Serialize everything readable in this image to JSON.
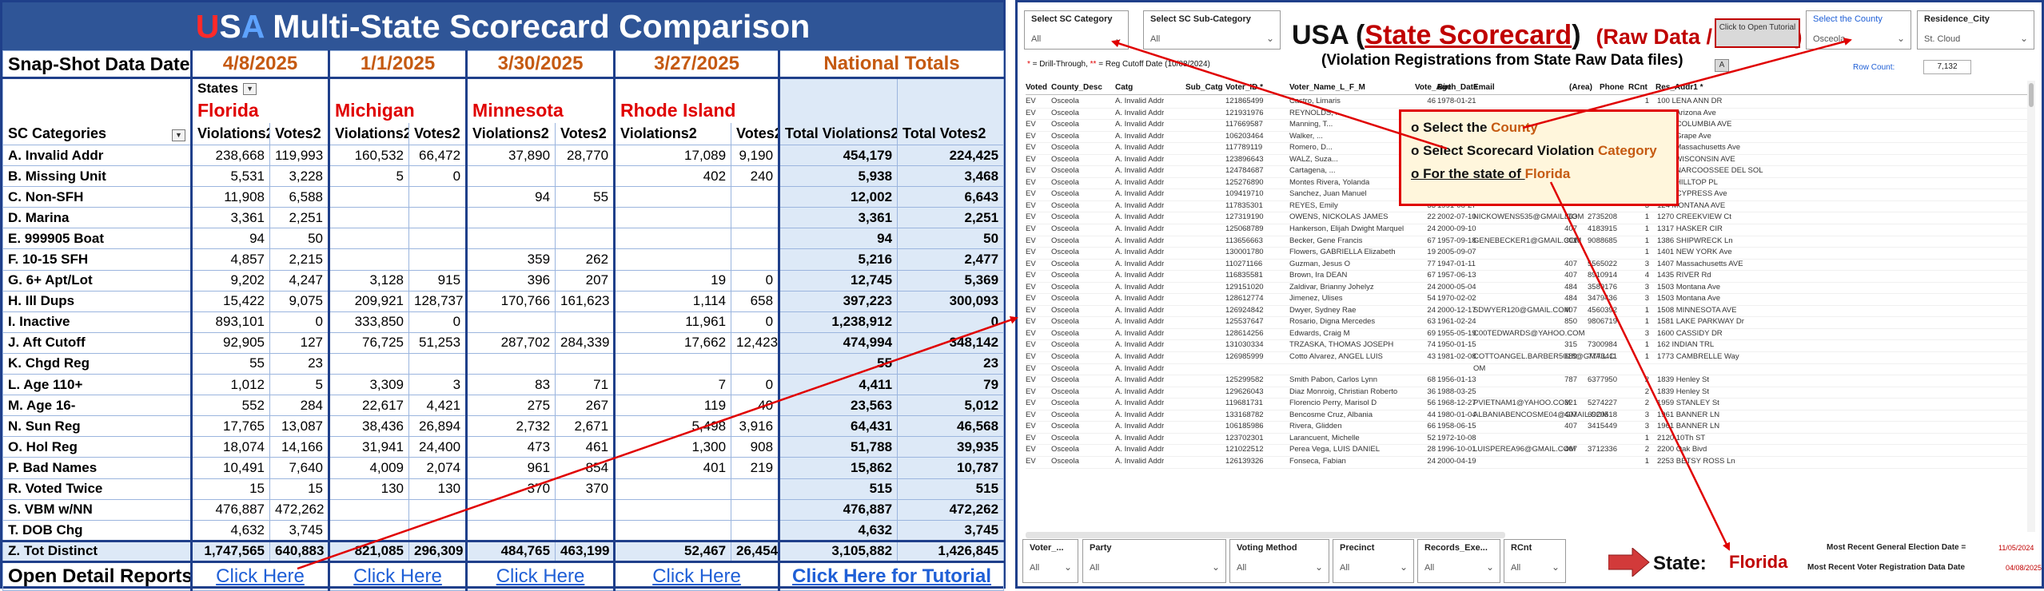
{
  "left": {
    "title_u": "U",
    "title_s": "S",
    "title_a": "A",
    "title_rest": " Multi-State Scorecard Comparison",
    "snapshot_label": "Snap-Shot Data Date:",
    "snapshot_dates": [
      "4/8/2025",
      "1/1/2025",
      "3/30/2025",
      "3/27/2025"
    ],
    "national_totals_label": "National Totals",
    "states_label": "States",
    "states": [
      "Florida",
      "Michigan",
      "Minnesota",
      "Rhode Island"
    ],
    "categories_label": "SC Categories",
    "violations_label": "Violations2",
    "votes_label": "Votes2",
    "total_violations_label": "Total Violations2",
    "total_votes_label": "Total Votes2",
    "rows": [
      {
        "cat": "A. Invalid Addr",
        "v": [
          "238,668",
          "119,993",
          "160,532",
          "66,472",
          "37,890",
          "28,770",
          "17,089",
          "9,190"
        ],
        "tv": "454,179",
        "tvo": "224,425"
      },
      {
        "cat": "B. Missing Unit",
        "v": [
          "5,531",
          "3,228",
          "5",
          "0",
          "",
          "",
          "402",
          "240"
        ],
        "tv": "5,938",
        "tvo": "3,468"
      },
      {
        "cat": "C. Non-SFH",
        "v": [
          "11,908",
          "6,588",
          "",
          "",
          "94",
          "55",
          "",
          ""
        ],
        "tv": "12,002",
        "tvo": "6,643"
      },
      {
        "cat": "D. Marina",
        "v": [
          "3,361",
          "2,251",
          "",
          "",
          "",
          "",
          "",
          ""
        ],
        "tv": "3,361",
        "tvo": "2,251"
      },
      {
        "cat": "E. 999905 Boat",
        "v": [
          "94",
          "50",
          "",
          "",
          "",
          "",
          "",
          ""
        ],
        "tv": "94",
        "tvo": "50"
      },
      {
        "cat": "F. 10-15 SFH",
        "v": [
          "4,857",
          "2,215",
          "",
          "",
          "359",
          "262",
          "",
          ""
        ],
        "tv": "5,216",
        "tvo": "2,477"
      },
      {
        "cat": "G. 6+ Apt/Lot",
        "v": [
          "9,202",
          "4,247",
          "3,128",
          "915",
          "396",
          "207",
          "19",
          "0"
        ],
        "tv": "12,745",
        "tvo": "5,369"
      },
      {
        "cat": "H. Ill Dups",
        "v": [
          "15,422",
          "9,075",
          "209,921",
          "128,737",
          "170,766",
          "161,623",
          "1,114",
          "658"
        ],
        "tv": "397,223",
        "tvo": "300,093"
      },
      {
        "cat": "I. Inactive",
        "v": [
          "893,101",
          "0",
          "333,850",
          "0",
          "",
          "",
          "11,961",
          "0"
        ],
        "tv": "1,238,912",
        "tvo": "0"
      },
      {
        "cat": "J. Aft Cutoff",
        "v": [
          "92,905",
          "127",
          "76,725",
          "51,253",
          "287,702",
          "284,339",
          "17,662",
          "12,423"
        ],
        "tv": "474,994",
        "tvo": "348,142"
      },
      {
        "cat": "K. Chgd Reg",
        "v": [
          "55",
          "23",
          "",
          "",
          "",
          "",
          "",
          ""
        ],
        "tv": "55",
        "tvo": "23"
      },
      {
        "cat": "L. Age 110+",
        "v": [
          "1,012",
          "5",
          "3,309",
          "3",
          "83",
          "71",
          "7",
          "0"
        ],
        "tv": "4,411",
        "tvo": "79"
      },
      {
        "cat": "M. Age 16-",
        "v": [
          "552",
          "284",
          "22,617",
          "4,421",
          "275",
          "267",
          "119",
          "40"
        ],
        "tv": "23,563",
        "tvo": "5,012"
      },
      {
        "cat": "N. Sun Reg",
        "v": [
          "17,765",
          "13,087",
          "38,436",
          "26,894",
          "2,732",
          "2,671",
          "5,498",
          "3,916"
        ],
        "tv": "64,431",
        "tvo": "46,568"
      },
      {
        "cat": "O. Hol Reg",
        "v": [
          "18,074",
          "14,166",
          "31,941",
          "24,400",
          "473",
          "461",
          "1,300",
          "908"
        ],
        "tv": "51,788",
        "tvo": "39,935"
      },
      {
        "cat": "P. Bad Names",
        "v": [
          "10,491",
          "7,640",
          "4,009",
          "2,074",
          "961",
          "854",
          "401",
          "219"
        ],
        "tv": "15,862",
        "tvo": "10,787"
      },
      {
        "cat": "R. Voted Twice",
        "v": [
          "15",
          "15",
          "130",
          "130",
          "370",
          "370",
          "",
          ""
        ],
        "tv": "515",
        "tvo": "515"
      },
      {
        "cat": "S. VBM w/NN",
        "v": [
          "476,887",
          "472,262",
          "",
          "",
          "",
          "",
          "",
          ""
        ],
        "tv": "476,887",
        "tvo": "472,262"
      },
      {
        "cat": "T. DOB Chg",
        "v": [
          "4,632",
          "3,745",
          "",
          "",
          "",
          "",
          "",
          ""
        ],
        "tv": "4,632",
        "tvo": "3,745"
      }
    ],
    "total_row": {
      "cat": "Z. Tot Distinct",
      "v": [
        "1,747,565",
        "640,883",
        "821,085",
        "296,309",
        "484,765",
        "463,199",
        "52,467",
        "26,454"
      ],
      "tv": "3,105,882",
      "tvo": "1,426,845"
    },
    "open_detail_label": "Open Detail Reports:",
    "click_here": "Click Here",
    "click_here_tutorial": "Click Here for Tutorial"
  },
  "right": {
    "slicer_sc_category": {
      "title": "Select SC Category",
      "value": "All"
    },
    "slicer_sc_subcategory": {
      "title": "Select SC Sub-Category",
      "value": "All"
    },
    "title_usa": "USA (",
    "title_sc": "State Scorecard",
    "title_close": ")",
    "title_raw": "(Raw Data / PROOF)",
    "subtitle": "(Violation Registrations from State Raw Data files)",
    "tutorial_button": "Click to Open Tutorial",
    "small_button": "A",
    "slicer_county": {
      "title": "Select the County",
      "value": "Osceola"
    },
    "slicer_city": {
      "title": "Residence_City",
      "value": "St. Cloud"
    },
    "legend_star": "*",
    "legend_drill": " = Drill-Through,   ",
    "legend_star2": "**",
    "legend_reg": " = Reg Cutoff Date (10/08/2024)",
    "row_count_label": "Row Count:",
    "row_count": "7,132",
    "columns": [
      "Voted",
      "County_Desc",
      "Catg",
      "Sub_Catg",
      "Voter_ID *",
      "Voter_Name_L_F_M",
      "Vote_Age",
      "Birth_Date",
      "Email",
      "(Area)",
      "Phone",
      "RCnt",
      "Res_Addr1 *"
    ],
    "records": [
      [
        "EV",
        "Osceola",
        "A. Invalid Addr",
        "",
        "121865499",
        "Castro, Limaris",
        "46",
        "1978-01-21",
        "",
        "",
        "",
        "1",
        "100 LENA ANN DR"
      ],
      [
        "EV",
        "Osceola",
        "A. Invalid Addr",
        "",
        "121931976",
        "REYNOLDS, ...",
        "",
        "",
        "",
        "",
        "",
        "1",
        "1012 Arizona Ave"
      ],
      [
        "EV",
        "Osceola",
        "A. Invalid Addr",
        "",
        "117669587",
        "Manning, T...",
        "",
        "",
        "",
        "407",
        "7388686",
        "4",
        "1031 COLUMBIA AVE"
      ],
      [
        "EV",
        "Osceola",
        "A. Invalid Addr",
        "",
        "106203464",
        "Walker, ...",
        "",
        "",
        "",
        "",
        "",
        "1",
        "1103 Grape Ave"
      ],
      [
        "EV",
        "Osceola",
        "A. Invalid Addr",
        "",
        "117789119",
        "Romero, D...",
        "",
        "",
        "",
        "",
        "",
        "14",
        "1117 Massachusetts Ave"
      ],
      [
        "EV",
        "Osceola",
        "A. Invalid Addr",
        "",
        "123896643",
        "WALZ, Suza...",
        "",
        "",
        "...mail.com",
        "407",
        "3467297",
        "2",
        "1118 WISCONSIN AVE"
      ],
      [
        "EV",
        "Osceola",
        "A. Invalid Addr",
        "",
        "124784687",
        "Cartagena, ...",
        "",
        "",
        "...AIL.COM",
        "407",
        "4570128",
        "1",
        "1136 NARCOOSSEE DEL SOL"
      ],
      [
        "EV",
        "Osceola",
        "A. Invalid Addr",
        "",
        "125276890",
        "Montes Rivera, Yolanda",
        "",
        "1985-12-09",
        "",
        "787",
        "3612190",
        "2",
        "1197 HILLTOP PL"
      ],
      [
        "EV",
        "Osceola",
        "A. Invalid Addr",
        "",
        "109419710",
        "Sanchez, Juan Manuel",
        "73",
        "1951-08-28",
        "juansanchezpa@gmail.com",
        "407",
        "8979017",
        "1",
        "1214 CYPRESS Ave"
      ],
      [
        "EV",
        "Osceola",
        "A. Invalid Addr",
        "",
        "117835301",
        "REYES, Emily",
        "33",
        "1991-08-27",
        "",
        "",
        "",
        "3",
        "124 MONTANA AVE"
      ],
      [
        "EV",
        "Osceola",
        "A. Invalid Addr",
        "",
        "127319190",
        "OWENS, NICKOLAS JAMES",
        "22",
        "2002-07-10",
        "NICKOWENS535@GMAIL.COM",
        "863",
        "2735208",
        "1",
        "1270 CREEKVIEW Ct"
      ],
      [
        "EV",
        "Osceola",
        "A. Invalid Addr",
        "",
        "125068789",
        "Hankerson, Elijah Dwight Marquel",
        "24",
        "2000-09-10",
        "",
        "407",
        "4183915",
        "1",
        "1317 HASKER CIR"
      ],
      [
        "EV",
        "Osceola",
        "A. Invalid Addr",
        "",
        "113656663",
        "Becker, Gene Francis",
        "67",
        "1957-09-18",
        "GENEBECKER1@GMAIL.COM",
        "301",
        "9088685",
        "1",
        "1386 SHIPWRECK Ln"
      ],
      [
        "EV",
        "Osceola",
        "A. Invalid Addr",
        "",
        "130001780",
        "Flowers, GABRIELLA Elizabeth",
        "19",
        "2005-09-07",
        "",
        "",
        "",
        "1",
        "1401 NEW YORK Ave"
      ],
      [
        "EV",
        "Osceola",
        "A. Invalid Addr",
        "",
        "110271166",
        "Guzman, Jesus O",
        "77",
        "1947-01-11",
        "",
        "407",
        "5565022",
        "3",
        "1407 Massachusetts AVE"
      ],
      [
        "EV",
        "Osceola",
        "A. Invalid Addr",
        "",
        "116835581",
        "Brown, Ira DEAN",
        "67",
        "1957-06-13",
        "",
        "407",
        "8910914",
        "4",
        "1435 RIVER Rd"
      ],
      [
        "EV",
        "Osceola",
        "A. Invalid Addr",
        "",
        "129151020",
        "Zaldivar, Brianny Johelyz",
        "24",
        "2000-05-04",
        "",
        "484",
        "3589176",
        "3",
        "1503 Montana Ave"
      ],
      [
        "EV",
        "Osceola",
        "A. Invalid Addr",
        "",
        "128612774",
        "Jimenez, Ulises",
        "54",
        "1970-02-02",
        "",
        "484",
        "3479436",
        "3",
        "1503 Montana Ave"
      ],
      [
        "EV",
        "Osceola",
        "A. Invalid Addr",
        "",
        "126924842",
        "Dwyer, Sydney Rae",
        "24",
        "2000-12-17",
        "SDWYER120@GMAIL.COM",
        "407",
        "4560392",
        "1",
        "1508 MINNESOTA AVE"
      ],
      [
        "EV",
        "Osceola",
        "A. Invalid Addr",
        "",
        "125537647",
        "Rosario, Digna Mercedes",
        "63",
        "1961-02-24",
        "",
        "850",
        "9806719",
        "1",
        "1581 LAKE PARKWAY Dr"
      ],
      [
        "EV",
        "Osceola",
        "A. Invalid Addr",
        "",
        "128614256",
        "Edwards, Craig M",
        "69",
        "1955-05-19",
        "C00TEDWARDS@YAHOO.COM",
        "",
        "",
        "3",
        "1600 CASSIDY DR"
      ],
      [
        "EV",
        "Osceola",
        "A. Invalid Addr",
        "",
        "131030334",
        "TRZASKA, THOMAS JOSEPH",
        "74",
        "1950-01-15",
        "",
        "315",
        "7300984",
        "1",
        "162 INDIAN TRL"
      ],
      [
        "EV",
        "Osceola",
        "A. Invalid Addr",
        "",
        "126985999",
        "Cotto Alvarez, ANGEL LUIS",
        "43",
        "1981-02-08",
        "COTTOANGEL.BARBER5018@GMAIL.C",
        "689",
        "7773411",
        "1",
        "1773 CAMBRELLE Way"
      ],
      [
        "EV",
        "Osceola",
        "A. Invalid Addr",
        "",
        "",
        "",
        "",
        "",
        "OM",
        "",
        "",
        "",
        ""
      ],
      [
        "EV",
        "Osceola",
        "A. Invalid Addr",
        "",
        "125299582",
        "Smith Pabon, Carlos Lynn",
        "68",
        "1956-01-13",
        "",
        "787",
        "6377950",
        "2",
        "1839 Henley St"
      ],
      [
        "EV",
        "Osceola",
        "A. Invalid Addr",
        "",
        "129626043",
        "Diaz Monroig, Christian Roberto",
        "36",
        "1988-03-25",
        "",
        "",
        "",
        "2",
        "1839 Henley St"
      ],
      [
        "EV",
        "Osceola",
        "A. Invalid Addr",
        "",
        "119681731",
        "Florencio Perry, Marisol D",
        "56",
        "1968-12-27",
        "PVIETNAM1@YAHOO.COM",
        "321",
        "5274227",
        "2",
        "1959 STANLEY St"
      ],
      [
        "EV",
        "Osceola",
        "A. Invalid Addr",
        "",
        "133168782",
        "Bencosme Cruz, Albania",
        "44",
        "1980-01-04",
        "ALBANIABENCOSME04@GMAIL.COM",
        "407",
        "6920518",
        "3",
        "1961 BANNER LN"
      ],
      [
        "EV",
        "Osceola",
        "A. Invalid Addr",
        "",
        "106185986",
        "Rivera, Glidden",
        "66",
        "1958-06-15",
        "",
        "407",
        "3415449",
        "3",
        "1961 BANNER LN"
      ],
      [
        "EV",
        "Osceola",
        "A. Invalid Addr",
        "",
        "123702301",
        "Larancuent, Michelle",
        "52",
        "1972-10-08",
        "",
        "",
        "",
        "1",
        "2120 10Th ST"
      ],
      [
        "EV",
        "Osceola",
        "A. Invalid Addr",
        "",
        "121022512",
        "Perea Vega, LUIS DANIEL",
        "28",
        "1996-10-01",
        "LUISPEREA96@GMAIL.COM",
        "407",
        "3712336",
        "2",
        "2200 Oak Bivd"
      ],
      [
        "EV",
        "Osceola",
        "A. Invalid Addr",
        "",
        "126139326",
        "Fonseca, Fabian",
        "24",
        "2000-04-19",
        "",
        "",
        "",
        "1",
        "2253 BETSY ROSS Ln"
      ]
    ],
    "popup": {
      "line1_pre": "o Select the ",
      "line1_hl": "County",
      "line2_pre": "o Select Scorecard Violation ",
      "line2_hl": "Category",
      "line3_pre": "o For the state of ",
      "line3_hl": "Florida"
    },
    "bottom_slicers": [
      {
        "title": "Voter_...",
        "value": "All"
      },
      {
        "title": "Party",
        "value": "All"
      },
      {
        "title": "Voting Method",
        "value": "All"
      },
      {
        "title": "Precinct",
        "value": "All"
      },
      {
        "title": "Records_Exe...",
        "value": "All"
      },
      {
        "title": "RCnt",
        "value": "All"
      }
    ],
    "state_label": "State:",
    "state_value": "Florida",
    "election_label": "Most Recent General Election Date =",
    "election_value": "11/05/2024",
    "registration_label": "Most Recent Voter Registration Data Date",
    "registration_value": "04/08/2025"
  },
  "colors": {
    "title_bar": "#2f5597",
    "accent_red": "#e00000",
    "orange": "#c55a11",
    "link_blue": "#1f5fd6",
    "national_fill": "#dde9f7"
  }
}
